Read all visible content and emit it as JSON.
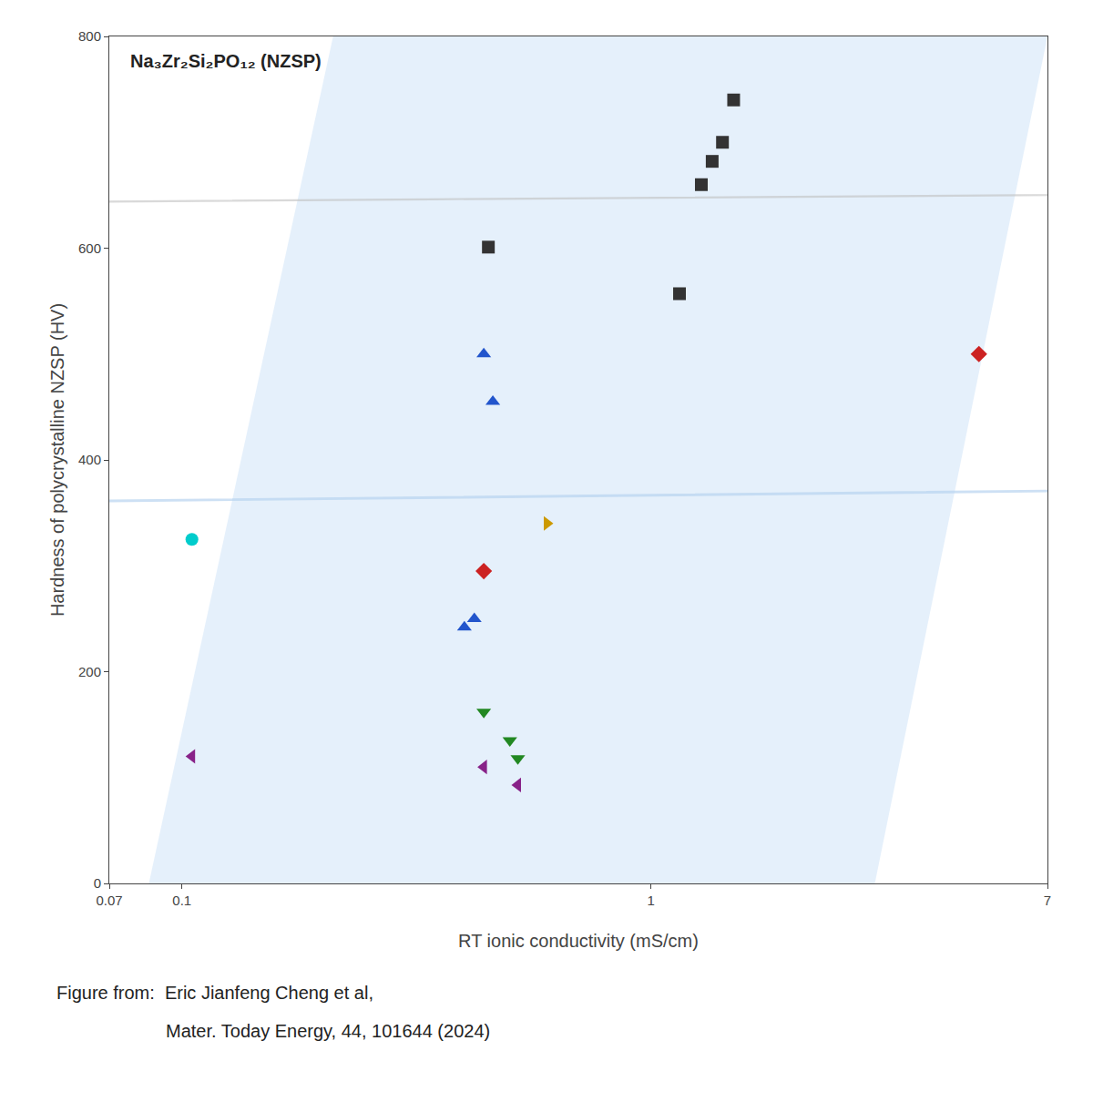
{
  "chart_data": {
    "type": "scatter",
    "title": "Na₃Zr₂Si₂PO₁₂ (NZSP)",
    "xlabel": "RT ionic conductivity (mS/cm)",
    "ylabel": "Hardness of polycrystalline NZSP (HV)",
    "caption": [
      "Figure from:  Eric Jianfeng Cheng et al,",
      "Mater. Today Energy, 44, 101644 (2024)"
    ],
    "log": "x",
    "xlim": [
      0.07,
      7
    ],
    "xticks": [
      0.07,
      0.1,
      1,
      7
    ],
    "ylim": [
      0,
      800
    ],
    "yticks": [
      0,
      200,
      400,
      600,
      800
    ],
    "grid": false,
    "band": {
      "x": [
        0.085,
        0.21,
        7.0,
        3.0
      ],
      "y": [
        0,
        800,
        800,
        0
      ],
      "color": "#d0e4f7"
    },
    "ellipses": [
      {
        "cx_log": -0.357,
        "cy": 365,
        "w_log": 0.26,
        "h": 290,
        "angle": -12,
        "color": "#b8d4f0"
      },
      {
        "cx_log": 0.13,
        "cy": 648,
        "w_log": 0.22,
        "h": 228,
        "angle": -18,
        "color": "#c0c0c0"
      }
    ],
    "series": [
      {
        "x": [
          0.45,
          1.15,
          1.28,
          1.35,
          1.42,
          1.5
        ],
        "values": [
          601,
          557,
          660,
          682,
          700,
          740
        ],
        "color": "#333333",
        "marker": "square"
      },
      {
        "x": [
          0.44,
          0.46,
          0.42,
          0.4
        ],
        "values": [
          500,
          455,
          250,
          242
        ],
        "color": "#2255cc",
        "marker": "triangle-up"
      },
      {
        "x": [
          0.44
        ],
        "values": [
          295
        ],
        "color": "#cc2222",
        "marker": "diamond"
      },
      {
        "x": [
          5.0
        ],
        "values": [
          500
        ],
        "color": "#cc2222",
        "marker": "diamond"
      },
      {
        "x": [
          0.6
        ],
        "values": [
          340
        ],
        "color": "#cc9900",
        "marker": "triangle-right"
      },
      {
        "x": [
          0.105
        ],
        "values": [
          325
        ],
        "color": "#00cccc",
        "marker": "circle"
      },
      {
        "x": [
          0.44,
          0.5,
          0.52
        ],
        "values": [
          162,
          135,
          118
        ],
        "color": "#228822",
        "marker": "triangle-down"
      },
      {
        "x": [
          0.105,
          0.44,
          0.52
        ],
        "values": [
          120,
          110,
          93
        ],
        "color": "#882288",
        "marker": "triangle-left"
      }
    ]
  }
}
